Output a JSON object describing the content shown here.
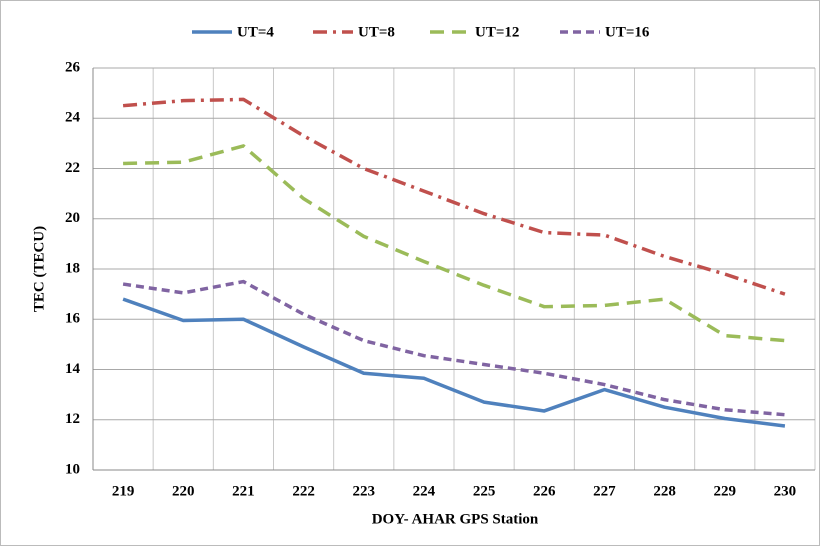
{
  "chart_data": {
    "type": "line",
    "x_label": "DOY- AHAR GPS Station",
    "y_label": "TEC (TECU)",
    "categories": [
      "219",
      "220",
      "221",
      "222",
      "223",
      "224",
      "225",
      "226",
      "227",
      "228",
      "229",
      "230"
    ],
    "series": [
      {
        "name": "UT=4",
        "color": "#4f81bd",
        "dash": "solid",
        "values": [
          16.8,
          15.95,
          16.0,
          14.9,
          13.85,
          13.65,
          12.7,
          12.35,
          13.2,
          12.5,
          12.05,
          11.75
        ]
      },
      {
        "name": "UT=8",
        "color": "#c0504d",
        "dash": "dashdot",
        "values": [
          24.5,
          24.7,
          24.75,
          23.3,
          22.0,
          21.1,
          20.2,
          19.45,
          19.35,
          18.5,
          17.8,
          17.0
        ]
      },
      {
        "name": "UT=12",
        "color": "#9bbb59",
        "dash": "dash",
        "values": [
          22.2,
          22.25,
          22.9,
          20.8,
          19.3,
          18.3,
          17.35,
          16.5,
          16.55,
          16.8,
          15.35,
          15.15
        ]
      },
      {
        "name": "UT=16",
        "color": "#8064a2",
        "dash": "shortdash",
        "values": [
          17.4,
          17.05,
          17.5,
          16.2,
          15.15,
          14.55,
          14.2,
          13.85,
          13.4,
          12.8,
          12.4,
          12.2
        ]
      }
    ],
    "ylim": [
      10,
      26
    ],
    "yticks": [
      10,
      12,
      14,
      16,
      18,
      20,
      22,
      24,
      26
    ],
    "grid": true,
    "legend": "top"
  }
}
